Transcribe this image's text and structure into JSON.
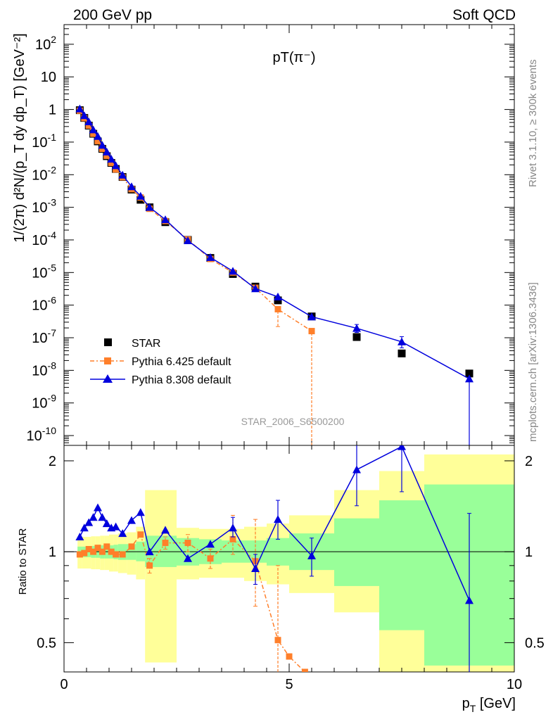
{
  "header": {
    "left": "200 GeV pp",
    "right": "Soft QCD"
  },
  "side_labels": {
    "rivet": "Rivet 3.1.10, ≥ 300k events",
    "mcplots": "mcplots.cern.ch [arXiv:1306.3436]"
  },
  "colors": {
    "star": "#000000",
    "pythia6": "#ff7f2a",
    "pythia8": "#0000dd",
    "band_outer": "#ffff99",
    "band_inner": "#99ff99"
  },
  "chart_data": [
    {
      "type": "scatter",
      "title": "pT(π⁻)",
      "analysis_label": "STAR_2006_S6500200",
      "ylabel": "1/(2π) d²N/(p_T dy dp_T) [GeV⁻²]",
      "xlabel": "p_T [GeV]",
      "ylog": true,
      "xlim": [
        0,
        10
      ],
      "ylim": [
        5e-11,
        400
      ],
      "x_ticks": [
        "0",
        "5",
        "10"
      ],
      "y_ticks": [
        "10^-10",
        "10^-9",
        "10^-8",
        "10^-7",
        "10^-6",
        "10^-5",
        "10^-4",
        "10^-3",
        "10^-2",
        "10^-1",
        "1",
        "10",
        "10^2"
      ],
      "legend": [
        "STAR",
        "Pythia 6.425 default",
        "Pythia 8.308 default"
      ],
      "legend_position": "bottom-left",
      "series": [
        {
          "name": "STAR",
          "marker": "square",
          "x": [
            0.35,
            0.45,
            0.55,
            0.65,
            0.75,
            0.85,
            0.95,
            1.05,
            1.15,
            1.3,
            1.5,
            1.7,
            1.9,
            2.25,
            2.75,
            3.25,
            3.75,
            4.25,
            4.75,
            5.5,
            6.5,
            7.5,
            9.0
          ],
          "y": [
            0.95,
            0.55,
            0.32,
            0.18,
            0.105,
            0.062,
            0.037,
            0.023,
            0.015,
            0.0085,
            0.0035,
            0.0017,
            0.001,
            0.00035,
            0.0001,
            2.8e-05,
            9e-06,
            3.7e-06,
            1.4e-06,
            4.5e-07,
            1.05e-07,
            3.3e-08,
            8e-09
          ]
        },
        {
          "name": "Pythia 6.425 default",
          "marker": "square",
          "style": "dash-dot",
          "x": [
            0.35,
            0.45,
            0.55,
            0.65,
            0.75,
            0.85,
            0.95,
            1.05,
            1.15,
            1.3,
            1.5,
            1.7,
            1.9,
            2.25,
            2.75,
            3.25,
            3.75,
            4.25,
            4.75,
            5.5
          ],
          "y": [
            0.92,
            0.54,
            0.32,
            0.18,
            0.107,
            0.062,
            0.038,
            0.023,
            0.0145,
            0.0083,
            0.0036,
            0.002,
            0.0009,
            0.00038,
            0.000103,
            2.6e-05,
            1e-05,
            3.4e-06,
            7.5e-07,
            1.6e-07
          ],
          "yerr_low": [
            0,
            0,
            0,
            0,
            0,
            0,
            0,
            0,
            0,
            0,
            0,
            0,
            0,
            0,
            0,
            0,
            0,
            0,
            5.3e-07,
            1.6e-07
          ],
          "yerr_high": [
            0,
            0,
            0,
            0,
            0,
            0,
            0,
            0,
            0,
            0,
            0,
            0,
            0,
            0,
            0,
            0,
            0,
            0,
            0,
            0
          ]
        },
        {
          "name": "Pythia 8.308 default",
          "marker": "triangle",
          "x": [
            0.35,
            0.45,
            0.55,
            0.65,
            0.75,
            0.85,
            0.95,
            1.05,
            1.15,
            1.3,
            1.5,
            1.7,
            1.9,
            2.25,
            2.75,
            3.25,
            3.75,
            4.25,
            4.75,
            5.5,
            6.5,
            7.5,
            9.0
          ],
          "y": [
            1.05,
            0.65,
            0.42,
            0.24,
            0.15,
            0.08,
            0.05,
            0.03,
            0.019,
            0.0098,
            0.0043,
            0.0022,
            0.001,
            0.00042,
            9.5e-05,
            2.9e-05,
            1.1e-05,
            3.2e-06,
            1.8e-06,
            4.4e-07,
            1.95e-07,
            7.5e-08,
            5.5e-09
          ],
          "yerr_low": [
            0,
            0,
            0,
            0,
            0,
            0,
            0,
            0,
            0,
            0,
            0,
            0,
            0,
            0,
            0,
            0,
            0,
            0,
            0,
            0,
            5e-08,
            2.6e-08,
            5.5e-09
          ],
          "yerr_high": [
            0,
            0,
            0,
            0,
            0,
            0,
            0,
            0,
            0,
            0,
            0,
            0,
            0,
            0,
            0,
            0,
            0,
            0,
            0,
            0,
            6e-08,
            3.3e-08,
            0
          ]
        }
      ]
    },
    {
      "type": "scatter",
      "ylabel": "Ratio to STAR",
      "xlabel": "p_T [GeV]",
      "xlim": [
        0,
        10
      ],
      "ylim": [
        0.4,
        2.25
      ],
      "x_ticks": [
        "0",
        "5",
        "10"
      ],
      "y_ticks": [
        "0.5",
        "1",
        "2"
      ],
      "reference_line": 1,
      "bands": {
        "bins": [
          [
            0.3,
            0.4
          ],
          [
            0.4,
            0.5
          ],
          [
            0.5,
            0.6
          ],
          [
            0.6,
            0.7
          ],
          [
            0.7,
            0.8
          ],
          [
            0.8,
            0.9
          ],
          [
            0.9,
            1.0
          ],
          [
            1.0,
            1.1
          ],
          [
            1.1,
            1.2
          ],
          [
            1.2,
            1.4
          ],
          [
            1.4,
            1.6
          ],
          [
            1.6,
            1.8
          ],
          [
            1.8,
            2.0
          ],
          [
            2.0,
            2.5
          ],
          [
            2.5,
            3.0
          ],
          [
            3.0,
            3.5
          ],
          [
            3.5,
            4.0
          ],
          [
            4.0,
            4.5
          ],
          [
            4.5,
            5.0
          ],
          [
            5.0,
            6.0
          ],
          [
            6.0,
            7.0
          ],
          [
            7.0,
            8.0
          ],
          [
            8.0,
            10.0
          ]
        ],
        "inner_low": [
          0.96,
          0.96,
          0.96,
          0.955,
          0.955,
          0.95,
          0.95,
          0.95,
          0.945,
          0.94,
          0.94,
          0.93,
          0.89,
          0.89,
          0.9,
          0.91,
          0.92,
          0.92,
          0.9,
          0.87,
          0.77,
          0.55,
          0.42
        ],
        "inner_high": [
          1.04,
          1.04,
          1.04,
          1.045,
          1.045,
          1.05,
          1.05,
          1.05,
          1.055,
          1.06,
          1.06,
          1.08,
          1.13,
          1.13,
          1.11,
          1.1,
          1.09,
          1.09,
          1.11,
          1.15,
          1.29,
          1.48,
          1.67
        ],
        "outer_low": [
          0.88,
          0.88,
          0.88,
          0.875,
          0.875,
          0.87,
          0.87,
          0.86,
          0.86,
          0.85,
          0.84,
          0.81,
          0.43,
          0.43,
          0.81,
          0.82,
          0.82,
          0.8,
          0.78,
          0.73,
          0.63,
          0.4,
          0.4
        ],
        "outer_high": [
          1.12,
          1.12,
          1.12,
          1.125,
          1.125,
          1.13,
          1.13,
          1.14,
          1.14,
          1.15,
          1.16,
          1.21,
          1.6,
          1.6,
          1.2,
          1.19,
          1.19,
          1.21,
          1.24,
          1.32,
          1.6,
          1.85,
          2.1
        ]
      },
      "series": [
        {
          "name": "Pythia 6.425 default",
          "marker": "square",
          "style": "dash-dot",
          "x": [
            0.35,
            0.45,
            0.55,
            0.65,
            0.75,
            0.85,
            0.95,
            1.05,
            1.15,
            1.3,
            1.5,
            1.7,
            1.9,
            2.25,
            2.75,
            3.25,
            3.75,
            4.25,
            4.75,
            5.0,
            5.35
          ],
          "y": [
            0.98,
            0.99,
            1.02,
            1.0,
            1.03,
            1.0,
            1.04,
            1.0,
            0.98,
            0.98,
            1.04,
            1.14,
            0.9,
            1.07,
            1.07,
            0.95,
            1.1,
            0.93,
            0.51,
            0.45,
            0.4
          ],
          "yerr_low": [
            0,
            0,
            0,
            0,
            0,
            0,
            0,
            0,
            0,
            0,
            0,
            0,
            0.05,
            0.05,
            0.07,
            0.07,
            0.12,
            0.27,
            0.13,
            0,
            0
          ],
          "yerr_high": [
            0,
            0,
            0,
            0,
            0,
            0,
            0,
            0,
            0,
            0,
            0,
            0,
            0.05,
            0.05,
            0.07,
            0.07,
            0.22,
            0.35,
            0.39,
            0,
            0
          ]
        },
        {
          "name": "Pythia 8.308 default",
          "marker": "triangle",
          "x": [
            0.35,
            0.45,
            0.55,
            0.65,
            0.75,
            0.85,
            0.95,
            1.05,
            1.15,
            1.3,
            1.5,
            1.7,
            1.9,
            2.25,
            2.75,
            3.25,
            3.75,
            4.25,
            4.75,
            5.5,
            6.5,
            7.5,
            9.0
          ],
          "y": [
            1.12,
            1.2,
            1.25,
            1.3,
            1.4,
            1.3,
            1.24,
            1.2,
            1.21,
            1.15,
            1.27,
            1.35,
            1.0,
            1.18,
            0.95,
            1.06,
            1.2,
            0.88,
            1.28,
            0.97,
            1.87,
            2.23,
            0.69
          ],
          "yerr_low": [
            0,
            0,
            0,
            0,
            0,
            0,
            0,
            0,
            0,
            0,
            0,
            0,
            0,
            0,
            0,
            0,
            0.08,
            0.1,
            0.18,
            0.14,
            0.45,
            0.65,
            0.34
          ],
          "yerr_high": [
            0,
            0,
            0,
            0,
            0,
            0,
            0,
            0,
            0,
            0,
            0,
            0,
            0,
            0,
            0,
            0,
            0.1,
            0.1,
            0.2,
            0.14,
            0.5,
            0.0,
            0.65
          ]
        }
      ]
    }
  ]
}
